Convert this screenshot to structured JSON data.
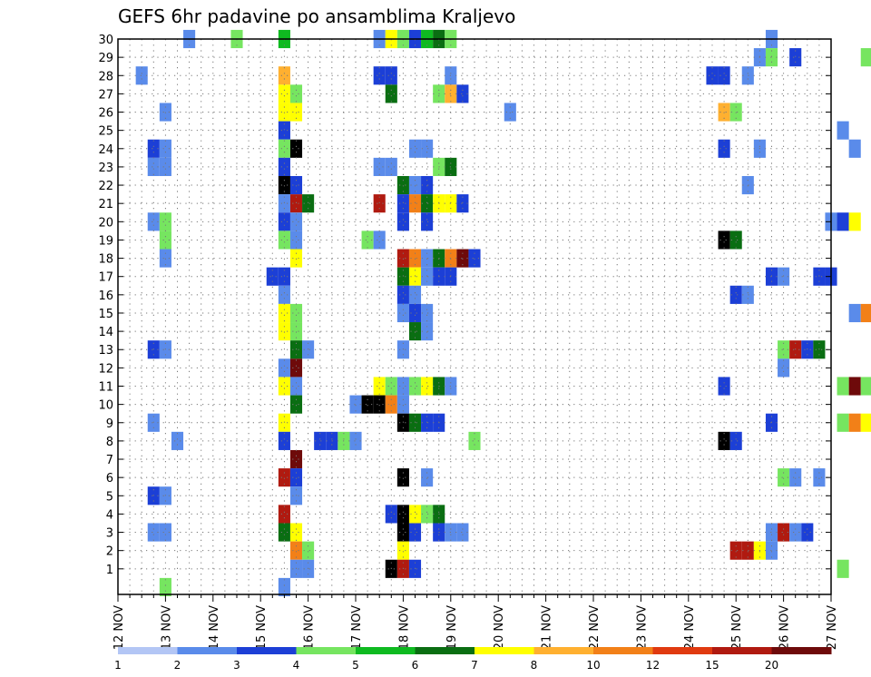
{
  "chart_data": {
    "type": "heatmap",
    "title": "GEFS 6hr padavine po ansamblima Kraljevo",
    "x_ticks": [
      "12 NOV",
      "13 NOV",
      "14 NOV",
      "15 NOV",
      "16 NOV",
      "17 NOV",
      "18 NOV",
      "19 NOV",
      "20 NOV",
      "21 NOV",
      "22 NOV",
      "23 NOV",
      "24 NOV",
      "25 NOV",
      "26 NOV",
      "27 NOV"
    ],
    "y_ticks": [
      1,
      2,
      3,
      4,
      5,
      6,
      7,
      8,
      9,
      10,
      11,
      12,
      13,
      14,
      15,
      16,
      17,
      18,
      19,
      20,
      21,
      22,
      23,
      24,
      25,
      26,
      27,
      28,
      29,
      30
    ],
    "ylim": [
      0,
      30
    ],
    "grid": true,
    "step_hours": 6,
    "colorbar": {
      "labels": [
        "1",
        "2",
        "3",
        "4",
        "5",
        "6",
        "7",
        "8",
        "10",
        "12",
        "15",
        "20"
      ],
      "colors": [
        "#b3c6f5",
        "#5a8bea",
        "#1c3fd6",
        "#76e560",
        "#0fba20",
        "#0a6e12",
        "#ffff00",
        "#ffb030",
        "#f28018",
        "#e03a10",
        "#b01a10",
        "#6e0a0a"
      ]
    },
    "cells": [
      [
        30,
        1.5,
        1
      ],
      [
        30,
        2.5,
        3
      ],
      [
        30,
        3.5,
        4
      ],
      [
        30,
        5.5,
        1
      ],
      [
        30,
        5.75,
        6
      ],
      [
        30,
        6,
        3
      ],
      [
        30,
        6.25,
        2
      ],
      [
        30,
        6.5,
        4
      ],
      [
        30,
        6.75,
        5
      ],
      [
        30,
        7,
        3
      ],
      [
        30,
        13.75,
        1
      ],
      [
        29,
        13.5,
        1
      ],
      [
        29,
        13.75,
        3
      ],
      [
        29,
        14.25,
        2
      ],
      [
        29,
        15.75,
        3
      ],
      [
        29,
        16,
        7
      ],
      [
        29,
        16.25,
        2
      ],
      [
        29,
        16.5,
        1
      ],
      [
        29,
        16.75,
        1
      ],
      [
        28,
        0.5,
        1
      ],
      [
        28,
        3.5,
        7
      ],
      [
        28,
        5.5,
        2
      ],
      [
        28,
        5.75,
        2
      ],
      [
        28,
        7,
        1
      ],
      [
        28,
        12.5,
        2
      ],
      [
        28,
        12.75,
        2
      ],
      [
        28,
        13.25,
        1
      ],
      [
        27,
        3.5,
        6
      ],
      [
        27,
        3.75,
        3
      ],
      [
        27,
        5.75,
        5
      ],
      [
        27,
        6.75,
        3
      ],
      [
        27,
        7,
        7
      ],
      [
        27,
        7.25,
        2
      ],
      [
        26,
        1,
        1
      ],
      [
        26,
        3.5,
        6
      ],
      [
        26,
        3.75,
        6
      ],
      [
        26,
        8.25,
        1
      ],
      [
        26,
        12.75,
        7
      ],
      [
        26,
        13,
        3
      ],
      [
        25,
        3.5,
        2
      ],
      [
        25,
        15.25,
        1
      ],
      [
        25,
        16,
        1
      ],
      [
        25,
        16.25,
        1
      ],
      [
        25,
        16.75,
        1
      ],
      [
        24,
        0.75,
        2
      ],
      [
        24,
        1,
        1
      ],
      [
        24,
        3.5,
        3
      ],
      [
        24,
        3.75,
        12
      ],
      [
        24,
        6.25,
        1
      ],
      [
        24,
        6.5,
        1
      ],
      [
        24,
        12.75,
        2
      ],
      [
        24,
        13.5,
        1
      ],
      [
        24,
        15.5,
        1
      ],
      [
        24,
        16,
        6
      ],
      [
        24,
        16.25,
        11
      ],
      [
        24,
        16.5,
        3
      ],
      [
        24,
        16.75,
        2
      ],
      [
        23,
        0.75,
        1
      ],
      [
        23,
        1,
        1
      ],
      [
        23,
        3.5,
        2
      ],
      [
        23,
        5.5,
        1
      ],
      [
        23,
        5.75,
        1
      ],
      [
        23,
        6.75,
        3
      ],
      [
        23,
        7,
        5
      ],
      [
        22,
        3.5,
        13
      ],
      [
        22,
        3.75,
        2
      ],
      [
        22,
        6,
        5
      ],
      [
        22,
        6.25,
        1
      ],
      [
        22,
        6.5,
        2
      ],
      [
        22,
        13.25,
        1
      ],
      [
        22,
        16.25,
        1
      ],
      [
        21,
        3.5,
        1
      ],
      [
        21,
        3.75,
        10
      ],
      [
        21,
        4,
        5
      ],
      [
        21,
        5.5,
        10
      ],
      [
        21,
        6,
        2
      ],
      [
        21,
        6.25,
        8
      ],
      [
        21,
        6.5,
        5
      ],
      [
        21,
        6.75,
        6
      ],
      [
        21,
        7,
        6
      ],
      [
        21,
        7.25,
        2
      ],
      [
        20,
        0.75,
        1
      ],
      [
        20,
        1,
        3
      ],
      [
        20,
        3.5,
        2
      ],
      [
        20,
        3.75,
        1
      ],
      [
        20,
        6,
        2
      ],
      [
        20,
        6.5,
        2
      ],
      [
        20,
        15,
        1
      ],
      [
        20,
        15.25,
        2
      ],
      [
        20,
        15.5,
        6
      ],
      [
        19,
        1,
        3
      ],
      [
        19,
        3.5,
        3
      ],
      [
        19,
        3.75,
        1
      ],
      [
        19,
        5.25,
        3
      ],
      [
        19,
        5.5,
        1
      ],
      [
        19,
        12.75,
        13
      ],
      [
        19,
        13,
        5
      ],
      [
        19,
        16.75,
        3
      ],
      [
        18,
        1,
        1
      ],
      [
        18,
        3.75,
        6
      ],
      [
        18,
        6,
        10
      ],
      [
        18,
        6.25,
        8
      ],
      [
        18,
        6.5,
        1
      ],
      [
        18,
        6.75,
        5
      ],
      [
        18,
        7,
        8
      ],
      [
        18,
        7.25,
        11
      ],
      [
        18,
        7.5,
        2
      ],
      [
        17,
        3.25,
        2
      ],
      [
        17,
        3.5,
        2
      ],
      [
        17,
        6,
        5
      ],
      [
        17,
        6.25,
        6
      ],
      [
        17,
        6.5,
        1
      ],
      [
        17,
        6.75,
        2
      ],
      [
        17,
        7,
        2
      ],
      [
        17,
        13.75,
        2
      ],
      [
        17,
        14,
        1
      ],
      [
        17,
        14.75,
        2
      ],
      [
        17,
        15,
        2
      ],
      [
        17,
        16.25,
        1
      ],
      [
        17,
        16.75,
        1
      ],
      [
        16,
        3.5,
        1
      ],
      [
        16,
        6,
        2
      ],
      [
        16,
        6.25,
        1
      ],
      [
        16,
        13,
        2
      ],
      [
        16,
        13.25,
        1
      ],
      [
        16,
        16.5,
        3
      ],
      [
        16,
        16.75,
        10
      ],
      [
        15,
        3.5,
        6
      ],
      [
        15,
        3.75,
        3
      ],
      [
        15,
        6,
        1
      ],
      [
        15,
        6.25,
        2
      ],
      [
        15,
        6.5,
        1
      ],
      [
        15,
        15.5,
        1
      ],
      [
        15,
        15.75,
        8
      ],
      [
        15,
        16,
        8
      ],
      [
        15,
        16.25,
        7
      ],
      [
        15,
        16.5,
        6
      ],
      [
        15,
        16.75,
        1
      ],
      [
        14,
        3.5,
        6
      ],
      [
        14,
        3.75,
        3
      ],
      [
        14,
        6.25,
        5
      ],
      [
        14,
        6.5,
        1
      ],
      [
        13,
        0.75,
        2
      ],
      [
        13,
        1,
        1
      ],
      [
        13,
        3.75,
        5
      ],
      [
        13,
        4,
        1
      ],
      [
        13,
        6,
        1
      ],
      [
        13,
        14,
        3
      ],
      [
        13,
        14.25,
        10
      ],
      [
        13,
        14.5,
        2
      ],
      [
        13,
        14.75,
        5
      ],
      [
        13,
        16.25,
        3
      ],
      [
        13,
        16.5,
        5
      ],
      [
        13,
        16.75,
        3
      ],
      [
        12,
        3.5,
        1
      ],
      [
        12,
        3.75,
        11
      ],
      [
        12,
        14,
        1
      ],
      [
        12,
        16.5,
        2
      ],
      [
        12,
        16.75,
        3
      ],
      [
        11,
        3.5,
        6
      ],
      [
        11,
        3.75,
        1
      ],
      [
        11,
        5.5,
        6
      ],
      [
        11,
        5.75,
        3
      ],
      [
        11,
        6,
        1
      ],
      [
        11,
        6.25,
        3
      ],
      [
        11,
        6.5,
        6
      ],
      [
        11,
        6.75,
        5
      ],
      [
        11,
        7,
        1
      ],
      [
        11,
        12.75,
        2
      ],
      [
        11,
        15.25,
        3
      ],
      [
        11,
        15.5,
        11
      ],
      [
        11,
        15.75,
        3
      ],
      [
        10,
        3.75,
        5
      ],
      [
        10,
        5,
        1
      ],
      [
        10,
        5.25,
        12
      ],
      [
        10,
        5.5,
        13
      ],
      [
        10,
        5.75,
        8
      ],
      [
        10,
        6,
        1
      ],
      [
        9,
        0.75,
        1
      ],
      [
        9,
        3.5,
        6
      ],
      [
        9,
        6,
        12
      ],
      [
        9,
        6.25,
        5
      ],
      [
        9,
        6.5,
        2
      ],
      [
        9,
        6.75,
        2
      ],
      [
        9,
        13.75,
        2
      ],
      [
        9,
        15.25,
        3
      ],
      [
        9,
        15.5,
        8
      ],
      [
        9,
        15.75,
        6
      ],
      [
        9,
        16.5,
        1
      ],
      [
        9,
        16.75,
        1
      ],
      [
        8,
        1.25,
        1
      ],
      [
        8,
        3.5,
        2
      ],
      [
        8,
        4.25,
        2
      ],
      [
        8,
        4.5,
        2
      ],
      [
        8,
        4.75,
        3
      ],
      [
        8,
        5,
        1
      ],
      [
        8,
        7.5,
        3
      ],
      [
        8,
        12.75,
        13
      ],
      [
        8,
        13,
        2
      ],
      [
        8,
        16.25,
        2
      ],
      [
        8,
        16.75,
        1
      ],
      [
        7,
        3.75,
        11
      ],
      [
        6,
        3.5,
        10
      ],
      [
        6,
        3.75,
        2
      ],
      [
        6,
        6,
        12
      ],
      [
        6,
        6.5,
        1
      ],
      [
        6,
        14,
        3
      ],
      [
        6,
        14.25,
        1
      ],
      [
        6,
        14.75,
        1
      ],
      [
        6,
        16,
        6
      ],
      [
        6,
        16.5,
        2
      ],
      [
        6,
        16.75,
        11
      ],
      [
        5,
        0.75,
        2
      ],
      [
        5,
        1,
        1
      ],
      [
        5,
        3.75,
        1
      ],
      [
        4,
        3.5,
        10
      ],
      [
        4,
        5.75,
        2
      ],
      [
        4,
        6,
        12
      ],
      [
        4,
        6.25,
        6
      ],
      [
        4,
        6.5,
        3
      ],
      [
        4,
        6.75,
        5
      ],
      [
        3,
        0.75,
        1
      ],
      [
        3,
        1,
        1
      ],
      [
        3,
        3.5,
        5
      ],
      [
        3,
        3.75,
        6
      ],
      [
        3,
        6,
        12
      ],
      [
        3,
        6.25,
        2
      ],
      [
        3,
        6.75,
        2
      ],
      [
        3,
        7,
        1
      ],
      [
        3,
        7.25,
        1
      ],
      [
        3,
        13.75,
        1
      ],
      [
        3,
        14,
        10
      ],
      [
        3,
        14.25,
        1
      ],
      [
        3,
        14.5,
        2
      ],
      [
        3,
        16.75,
        10
      ],
      [
        2,
        3.75,
        8
      ],
      [
        2,
        4,
        3
      ],
      [
        2,
        6,
        6
      ],
      [
        2,
        13,
        10
      ],
      [
        2,
        13.25,
        10
      ],
      [
        2,
        13.5,
        6
      ],
      [
        2,
        13.75,
        1
      ],
      [
        1,
        3.75,
        1
      ],
      [
        1,
        4,
        1
      ],
      [
        1,
        5.75,
        13
      ],
      [
        1,
        6,
        10
      ],
      [
        1,
        6.25,
        2
      ],
      [
        1,
        15.25,
        3
      ],
      [
        1,
        16.5,
        10
      ],
      [
        1,
        16.75,
        3
      ],
      [
        0,
        1,
        3
      ],
      [
        0,
        3.5,
        1
      ]
    ]
  }
}
